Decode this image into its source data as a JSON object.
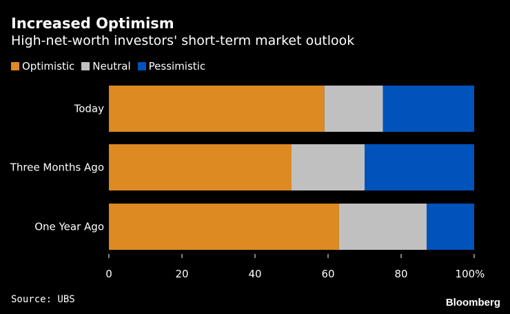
{
  "title": "Increased Optimism",
  "subtitle": "High-net-worth investors' short-term market outlook",
  "source": "Source: UBS",
  "logo": "Bloomberg",
  "chart_data": {
    "type": "bar",
    "orientation": "horizontal",
    "stacked": true,
    "categories": [
      "Today",
      "Three Months Ago",
      "One Year Ago"
    ],
    "series": [
      {
        "name": "Optimistic",
        "color": "#dd8a22",
        "values": [
          59,
          50,
          63
        ]
      },
      {
        "name": "Neutral",
        "color": "#c0c0c0",
        "values": [
          16,
          20,
          24
        ]
      },
      {
        "name": "Pessimistic",
        "color": "#0053bb",
        "values": [
          25,
          30,
          13
        ]
      }
    ],
    "xlim": [
      0,
      100
    ],
    "xticks": [
      "0",
      "20",
      "40",
      "60",
      "80",
      "100%"
    ],
    "legend": "top-left",
    "grid": false
  }
}
